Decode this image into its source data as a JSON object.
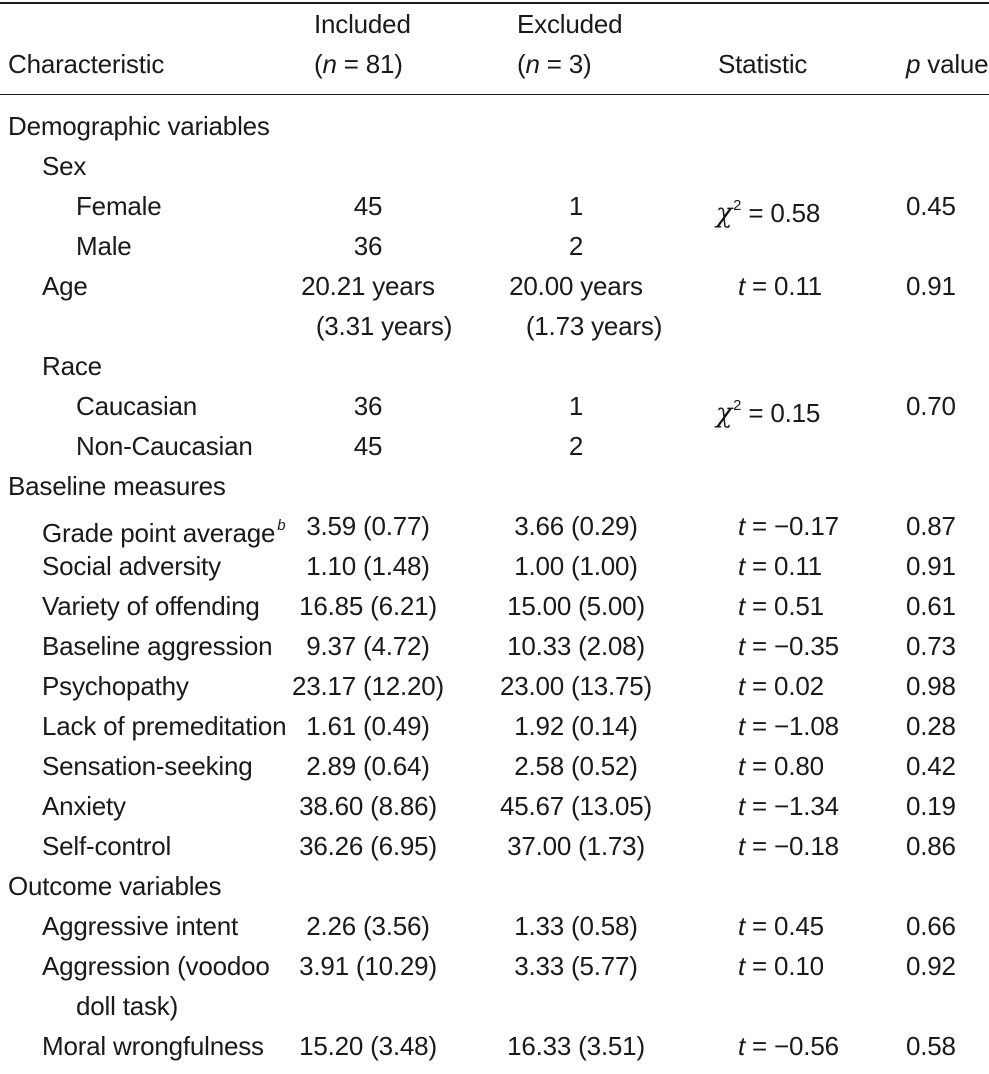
{
  "header": {
    "characteristic": "Characteristic",
    "included_line1": "Included",
    "included_line2_pre": "(",
    "included_n": "n",
    "included_line2_post": " = 81)",
    "excluded_line1": "Excluded",
    "excluded_line2_pre": "(",
    "excluded_n": "n",
    "excluded_line2_post": " = 3)",
    "statistic": "Statistic",
    "p_italic": "p",
    "p_rest": " value"
  },
  "sections": {
    "demographic": "Demographic variables",
    "baseline": "Baseline measures",
    "outcome": "Outcome variables"
  },
  "demographic": {
    "sex_label": "Sex",
    "female": {
      "label": "Female",
      "included": "45",
      "excluded": "1",
      "stat_sym": "χ",
      "stat_sup": "2",
      "stat_val": " = 0.58",
      "p": "0.45"
    },
    "male": {
      "label": "Male",
      "included": "36",
      "excluded": "2"
    },
    "age": {
      "label": "Age",
      "included": "20.21 years",
      "included2": "(3.31 years)",
      "excluded": "20.00 years",
      "excluded2": "(1.73 years)",
      "stat_sym": "t",
      "stat_val": " = 0.11",
      "p": "0.91"
    },
    "race_label": "Race",
    "caucasian": {
      "label": "Caucasian",
      "included": "36",
      "excluded": "1",
      "stat_sym": "χ",
      "stat_sup": "2",
      "stat_val": " = 0.15",
      "p": "0.70"
    },
    "non_caucasian": {
      "label": "Non-Caucasian",
      "included": "45",
      "excluded": "2"
    }
  },
  "baseline": {
    "gpa": {
      "label": "Grade point average",
      "label_sup": "b",
      "included": "3.59 (0.77)",
      "excluded": "3.66 (0.29)",
      "stat_sym": "t",
      "stat_val": " = −0.17",
      "p": "0.87"
    },
    "social": {
      "label": "Social adversity",
      "included": "1.10 (1.48)",
      "excluded": "1.00 (1.00)",
      "stat_sym": "t",
      "stat_val": " = 0.11",
      "p": "0.91"
    },
    "variety": {
      "label": "Variety of offending",
      "included": "16.85 (6.21)",
      "excluded": "15.00 (5.00)",
      "stat_sym": "t",
      "stat_val": " = 0.51",
      "p": "0.61"
    },
    "aggression": {
      "label": "Baseline aggression",
      "included": "9.37 (4.72)",
      "excluded": "10.33 (2.08)",
      "stat_sym": "t",
      "stat_val": " = −0.35",
      "p": "0.73"
    },
    "psychopathy": {
      "label": "Psychopathy",
      "included": "23.17 (12.20)",
      "excluded": "23.00 (13.75)",
      "stat_sym": "t",
      "stat_val": " = 0.02",
      "p": "0.98"
    },
    "premeditation": {
      "label": "Lack of premeditation",
      "included": "1.61 (0.49)",
      "excluded": "1.92 (0.14)",
      "stat_sym": "t",
      "stat_val": " = −1.08",
      "p": "0.28"
    },
    "sensation": {
      "label": "Sensation-seeking",
      "included": "2.89 (0.64)",
      "excluded": "2.58 (0.52)",
      "stat_sym": "t",
      "stat_val": " = 0.80",
      "p": "0.42"
    },
    "anxiety": {
      "label": "Anxiety",
      "included": "38.60 (8.86)",
      "excluded": "45.67 (13.05)",
      "stat_sym": "t",
      "stat_val": " = −1.34",
      "p": "0.19"
    },
    "selfcontrol": {
      "label": "Self-control",
      "included": "36.26 (6.95)",
      "excluded": "37.00 (1.73)",
      "stat_sym": "t",
      "stat_val": " = −0.18",
      "p": "0.86"
    }
  },
  "outcome": {
    "intent": {
      "label": "Aggressive intent",
      "included": "2.26 (3.56)",
      "excluded": "1.33 (0.58)",
      "stat_sym": "t",
      "stat_val": " = 0.45",
      "p": "0.66"
    },
    "voodoo": {
      "label": "Aggression (voodoo",
      "label2": "doll task)",
      "included": "3.91 (10.29)",
      "excluded": "3.33 (5.77)",
      "stat_sym": "t",
      "stat_val": " = 0.10",
      "p": "0.92"
    },
    "moral": {
      "label": "Moral wrongfulness",
      "included": "15.20 (3.48)",
      "excluded": "16.33 (3.51)",
      "stat_sym": "t",
      "stat_val": " = −0.56",
      "p": "0.58"
    }
  }
}
